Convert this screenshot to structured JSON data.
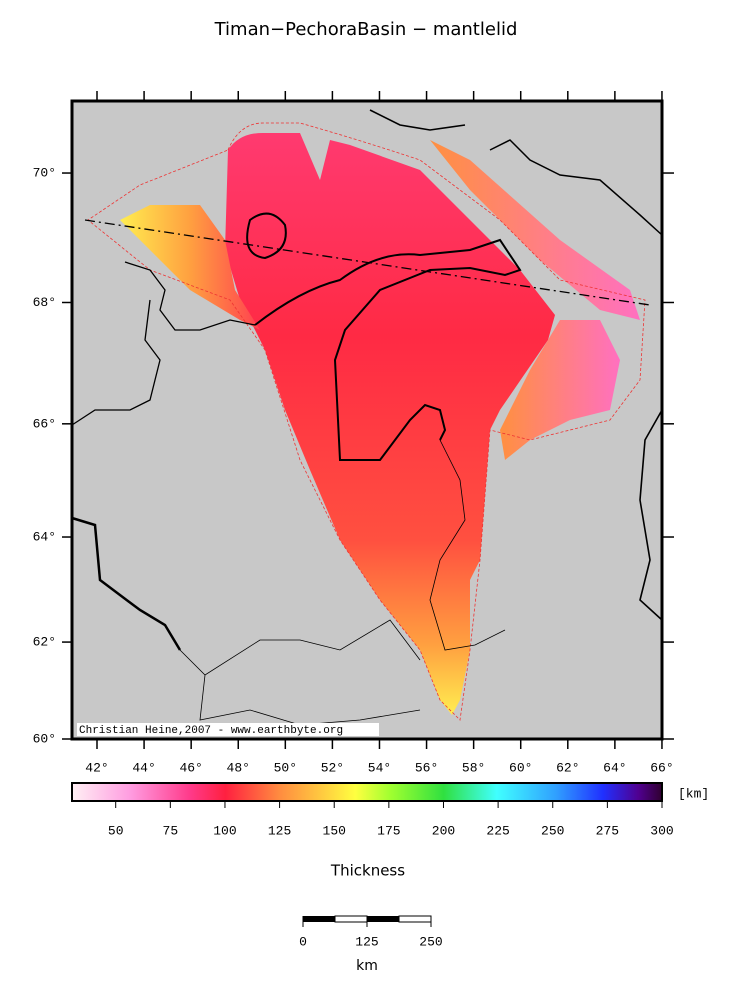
{
  "map": {
    "title": "Timan−PechoraBasin − mantlelid",
    "lat_ticks": [
      {
        "value": 60,
        "label": "60°"
      },
      {
        "value": 62,
        "label": "62°"
      },
      {
        "value": 64,
        "label": "64°"
      },
      {
        "value": 66,
        "label": "66°"
      },
      {
        "value": 68,
        "label": "68°"
      },
      {
        "value": 70,
        "label": "70°"
      }
    ],
    "lon_ticks": [
      {
        "value": 42,
        "label": "42°"
      },
      {
        "value": 44,
        "label": "44°"
      },
      {
        "value": 46,
        "label": "46°"
      },
      {
        "value": 48,
        "label": "48°"
      },
      {
        "value": 50,
        "label": "50°"
      },
      {
        "value": 52,
        "label": "52°"
      },
      {
        "value": 54,
        "label": "54°"
      },
      {
        "value": 56,
        "label": "56°"
      },
      {
        "value": 58,
        "label": "58°"
      },
      {
        "value": 60,
        "label": "60°"
      },
      {
        "value": 62,
        "label": "62°"
      },
      {
        "value": 64,
        "label": "64°"
      },
      {
        "value": 66,
        "label": "66°"
      }
    ],
    "credit": "Christian Heine,2007 - www.earthbyte.org",
    "colorbar": {
      "range": [
        30,
        300
      ],
      "ticks": [
        50,
        75,
        100,
        125,
        150,
        175,
        200,
        225,
        250,
        275,
        300
      ],
      "unit": "[km]",
      "label": "Thickness"
    },
    "scalebar": {
      "ticks": [
        0,
        125,
        250
      ],
      "unit": "km"
    }
  }
}
